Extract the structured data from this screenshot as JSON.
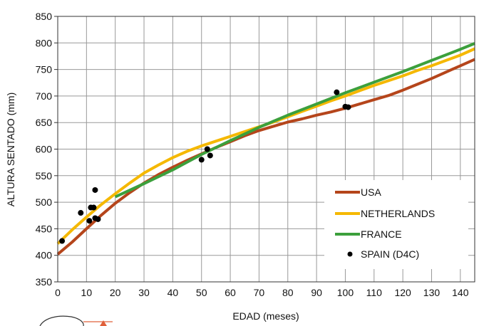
{
  "chart_data": {
    "type": "line",
    "xlabel": "EDAD (meses)",
    "ylabel": "ALTURA SENTADO (mm)",
    "xlim": [
      0,
      145
    ],
    "ylim": [
      350,
      850
    ],
    "x_ticks": [
      0,
      10,
      20,
      30,
      40,
      50,
      60,
      70,
      80,
      90,
      100,
      110,
      120,
      130,
      140
    ],
    "y_ticks": [
      350,
      400,
      450,
      500,
      550,
      600,
      650,
      700,
      750,
      800,
      850
    ],
    "grid": true,
    "legend_position": "bottom-right",
    "series": [
      {
        "name": "USA",
        "kind": "line",
        "color": "#b5451b",
        "x": [
          0,
          5,
          10,
          15,
          20,
          25,
          30,
          35,
          40,
          45,
          50,
          55,
          60,
          65,
          70,
          75,
          80,
          85,
          90,
          95,
          100,
          105,
          110,
          115,
          120,
          125,
          130,
          135,
          140,
          145
        ],
        "y": [
          402,
          425,
          450,
          475,
          498,
          518,
          536,
          552,
          566,
          579,
          591,
          603,
          614,
          625,
          635,
          643,
          651,
          657,
          664,
          670,
          677,
          685,
          693,
          701,
          711,
          722,
          733,
          745,
          757,
          769
        ]
      },
      {
        "name": "NETHERLANDS",
        "kind": "line",
        "color": "#f5b800",
        "x": [
          0,
          5,
          10,
          15,
          20,
          25,
          30,
          35,
          40,
          45,
          50,
          55,
          60,
          65,
          70,
          75,
          80,
          85,
          90,
          95,
          100,
          105,
          110,
          115,
          120,
          125,
          130,
          135,
          140,
          145
        ],
        "y": [
          422,
          448,
          472,
          495,
          516,
          536,
          555,
          570,
          584,
          596,
          606,
          615,
          624,
          633,
          642,
          651,
          661,
          671,
          681,
          691,
          700,
          710,
          720,
          729,
          738,
          748,
          757,
          767,
          777,
          789
        ]
      },
      {
        "name": "FRANCE",
        "kind": "line",
        "color": "#3ca03c",
        "x": [
          20,
          30,
          40,
          50,
          60,
          70,
          80,
          90,
          100,
          110,
          120,
          130,
          140,
          145
        ],
        "y": [
          510,
          535,
          561,
          590,
          616,
          641,
          664,
          685,
          706,
          726,
          746,
          767,
          788,
          799
        ]
      },
      {
        "name": "SPAIN (D4C)",
        "kind": "scatter",
        "color": "#000000",
        "x": [
          1.5,
          8,
          11,
          11.5,
          12.5,
          13,
          13,
          14,
          50,
          52,
          53,
          97,
          100,
          101
        ],
        "y": [
          427,
          480,
          465,
          490,
          490,
          523,
          470,
          468,
          580,
          600,
          588,
          707,
          680,
          679
        ]
      }
    ]
  }
}
